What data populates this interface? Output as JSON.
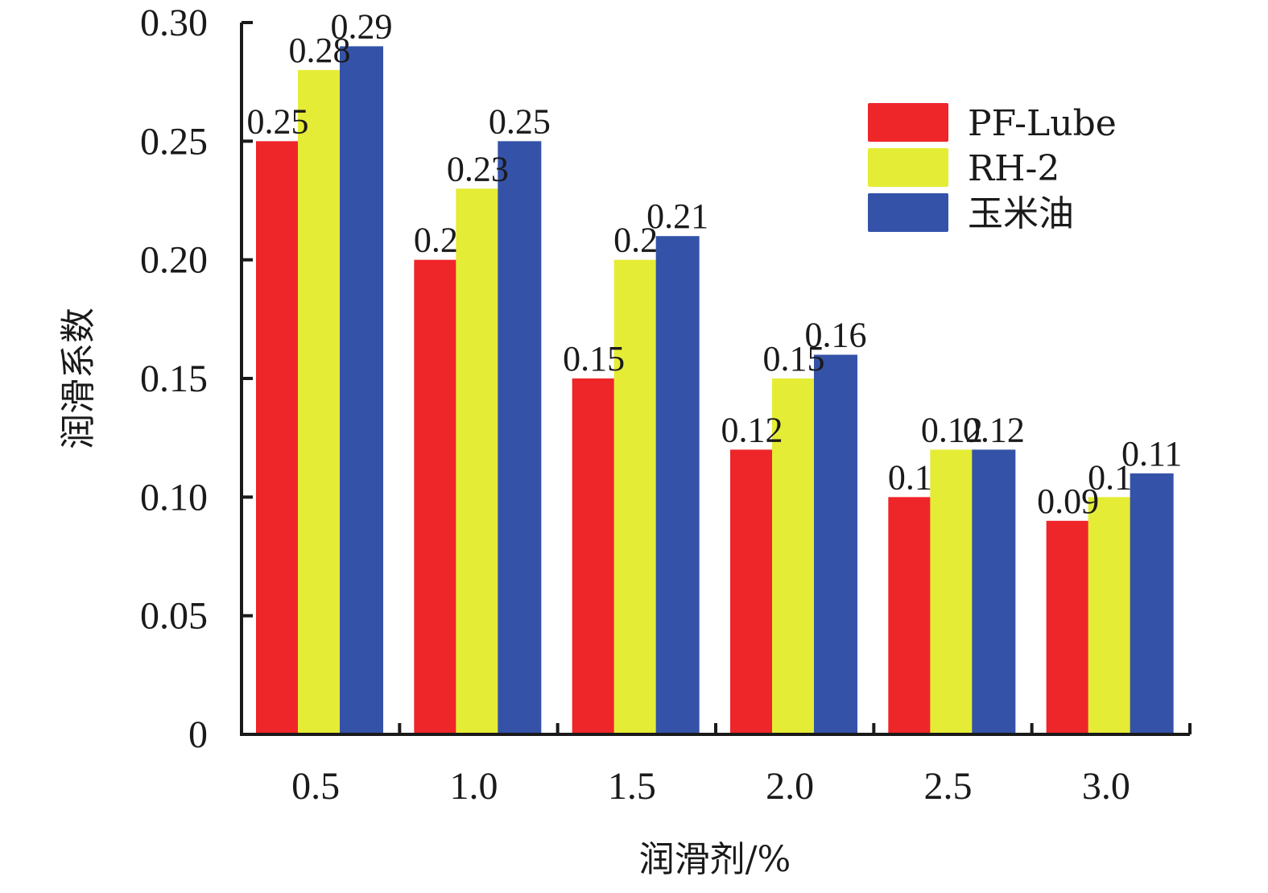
{
  "chart_data": {
    "type": "bar",
    "categories": [
      "0.5",
      "1.0",
      "1.5",
      "2.0",
      "2.5",
      "3.0"
    ],
    "series": [
      {
        "name": "PF-Lube",
        "color": "#ee2529",
        "values": [
          0.25,
          0.2,
          0.15,
          0.12,
          0.1,
          0.09
        ],
        "labels": [
          "0.25",
          "0.2",
          "0.15",
          "0.12",
          "0.1",
          "0.09"
        ]
      },
      {
        "name": "RH-2",
        "color": "#e5ec36",
        "values": [
          0.28,
          0.23,
          0.2,
          0.15,
          0.12,
          0.1
        ],
        "labels": [
          "0.28",
          "0.23",
          "0.2",
          "0.15",
          "0.12",
          "0.1"
        ]
      },
      {
        "name": "玉米油",
        "color": "#3452a8",
        "values": [
          0.29,
          0.25,
          0.21,
          0.16,
          0.12,
          0.11
        ],
        "labels": [
          "0.29",
          "0.25",
          "0.21",
          "0.16",
          "0.12",
          "0.11"
        ]
      }
    ],
    "xlabel": "润滑剂/%",
    "ylabel": "润滑系数",
    "ylim": [
      0,
      0.3
    ],
    "yticks": [
      "0",
      "0.05",
      "0.10",
      "0.15",
      "0.20",
      "0.25",
      "0.30"
    ],
    "ytick_values": [
      0,
      0.05,
      0.1,
      0.15,
      0.2,
      0.25,
      0.3
    ],
    "grid": false,
    "legend_position": "top-right"
  }
}
